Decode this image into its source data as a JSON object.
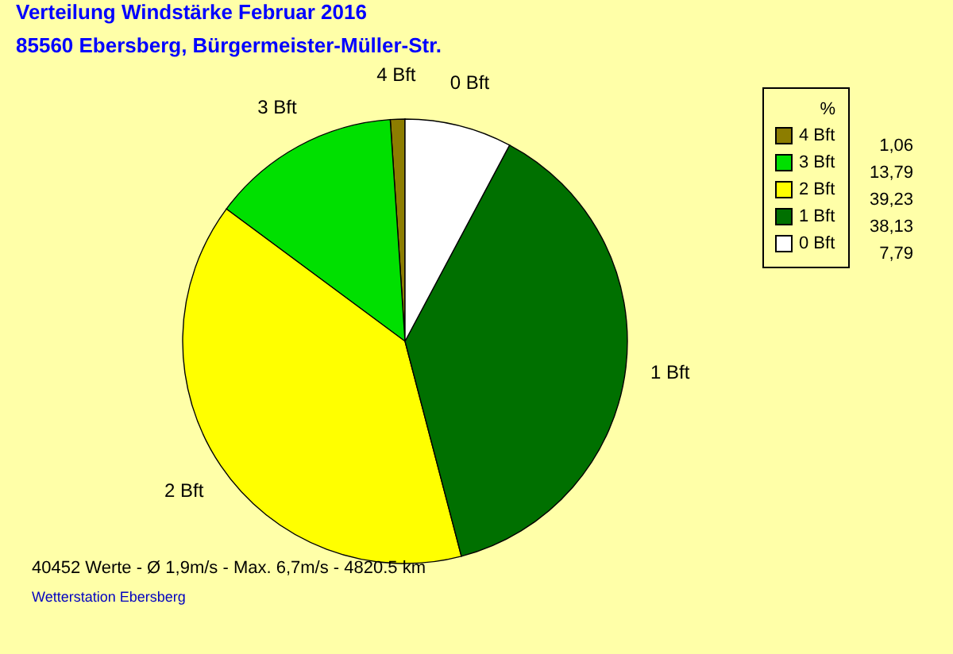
{
  "chart_data": {
    "type": "pie",
    "title": "Verteilung Windstärke  Februar 2016",
    "subtitle": "85560 Ebersberg, Bürgermeister-Müller-Str.",
    "categories": [
      "4 Bft",
      "3 Bft",
      "2 Bft",
      "1 Bft",
      "0 Bft"
    ],
    "values": [
      1.06,
      13.79,
      39.23,
      38.13,
      7.79
    ],
    "value_labels": [
      "1,06",
      "13,79",
      "39,23",
      "38,13",
      "7,79"
    ],
    "colors": [
      "#8c7d00",
      "#00e000",
      "#ffff00",
      "#007000",
      "#ffffff"
    ],
    "legend": "top right",
    "legend_title": "%",
    "annotations": [
      "40452 Werte   -   Ø 1,9m/s  -  Max. 6,7m/s   -   4820.5 km",
      "Wetterstation Ebersberg"
    ]
  }
}
